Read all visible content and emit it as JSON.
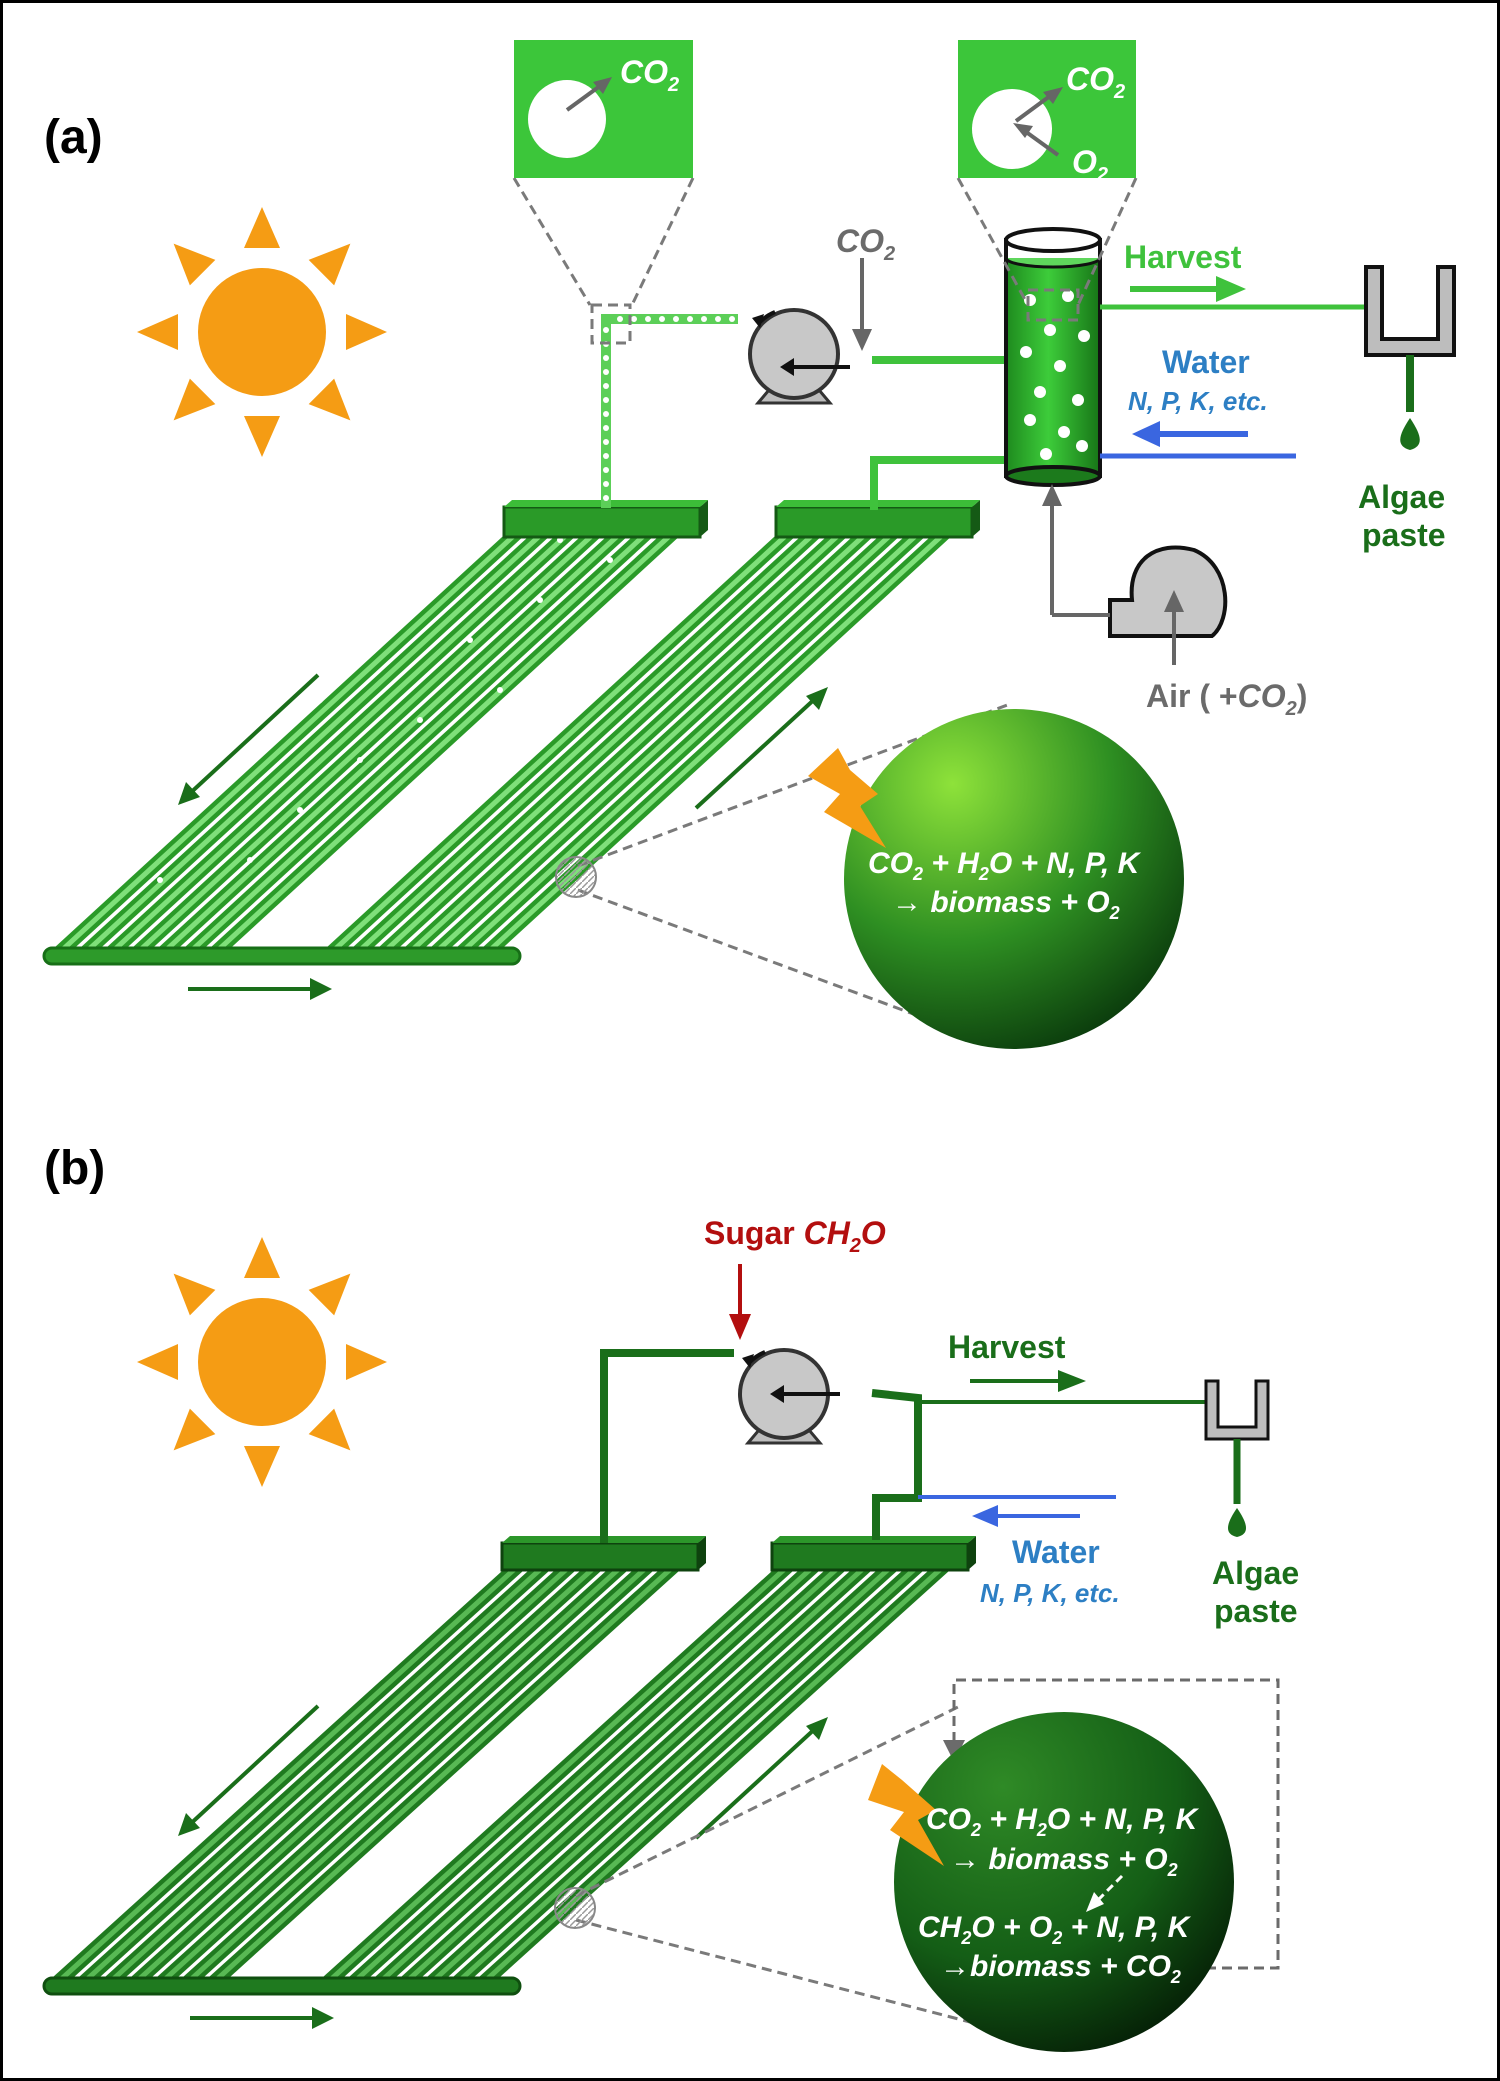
{
  "panel_a": {
    "letter": "(a)",
    "inset_left_gas": "CO",
    "inset_left_gas_sub": "2",
    "inset_right_gas_out": "CO",
    "inset_right_gas_out_sub": "2",
    "inset_right_gas_in": "O",
    "inset_right_gas_in_sub": "2",
    "co2_input": "CO",
    "co2_input_sub": "2",
    "harvest": "Harvest",
    "water": "Water",
    "nutrients": "N, P, K, etc.",
    "product_line1": "Algae",
    "product_line2": "paste",
    "air_prefix": "Air ( +",
    "air_gas": "CO",
    "air_gas_sub": "2",
    "air_suffix": ")",
    "reaction_co2": "CO",
    "reaction_co2_sub": "2",
    "reaction_plus1": " + H",
    "reaction_h2o_sub": "2",
    "reaction_rest": "O + N, P, K",
    "reaction_arrow": "→ biomass + O",
    "reaction_o2_sub": "2"
  },
  "panel_b": {
    "letter": "(b)",
    "sugar_label": "Sugar ",
    "sugar_formula": "CH",
    "sugar_formula_sub": "2",
    "sugar_formula_end": "O",
    "harvest": "Harvest",
    "water": "Water",
    "nutrients": "N, P, K, etc.",
    "product_line1": "Algae",
    "product_line2": "paste",
    "r1_co2": "CO",
    "r1_co2_sub": "2",
    "r1_mid": " + H",
    "r1_h2o_sub": "2",
    "r1_rest": "O + N, P, K",
    "r1_arrow": "→ biomass + O",
    "r1_o2_sub": "2",
    "r2_ch": "CH",
    "r2_ch_sub": "2",
    "r2_mid": "O + O",
    "r2_o2_sub": "2",
    "r2_rest": " + N, P, K",
    "r2_arrow": "→biomass + CO",
    "r2_co2_sub": "2"
  },
  "colors": {
    "sun": "#f59c14",
    "tube_dark": "#1f7a1f",
    "tube_light": "#4fc44a",
    "line_green": "#3fc23c",
    "harvest_green": "#1a6e1a",
    "water_blue": "#3a66e0",
    "sugar_red": "#b30f0f",
    "grey": "#6b6b6b"
  }
}
